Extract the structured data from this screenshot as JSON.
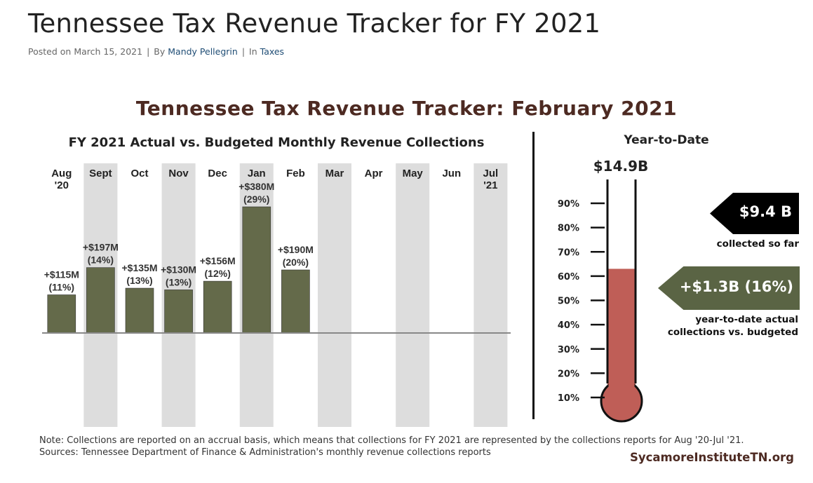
{
  "page": {
    "title": "Tennessee Tax Revenue Tracker for FY 2021",
    "meta": {
      "posted_prefix": "Posted on",
      "date": "March 15, 2021",
      "separator": "|",
      "by_prefix": "By",
      "author": "Mandy Pellegrin",
      "in_prefix": "In",
      "category": "Taxes"
    }
  },
  "infographic": {
    "title": "Tennessee Tax Revenue Tracker: February 2021",
    "left_subtitle": "FY 2021 Actual vs. Budgeted Monthly Revenue Collections",
    "right_subtitle": "Year-to-Date",
    "ytd_total": "$14.9B",
    "collected_callout": "$9.4 B",
    "collected_caption": "collected so far",
    "ytd_diff_callout": "+$1.3B (16%)",
    "ytd_diff_caption_line1": "year-to-date actual",
    "ytd_diff_caption_line2": "collections vs. budgeted",
    "note_line1": "Note: Collections are reported on an accrual basis, which means that collections for FY 2021 are represented by the collections reports for Aug '20-Jul '21.",
    "note_line2": "Sources: Tennessee Department of Finance & Administration's monthly revenue collections reports",
    "brand": "SycamoreInstituteTN.org",
    "colors": {
      "bar": "#646a4a",
      "shade": "#dddddd",
      "thermo_fill": "#bf5e57",
      "title": "#4d2a22",
      "callout_green": "#5a6444"
    }
  },
  "chart_data": [
    {
      "type": "bar",
      "title": "FY 2021 Actual vs. Budgeted Monthly Revenue Collections",
      "categories": [
        "Aug\n'20",
        "Sept",
        "Oct",
        "Nov",
        "Dec",
        "Jan",
        "Feb",
        "Mar",
        "Apr",
        "May",
        "Jun",
        "Jul\n'21"
      ],
      "series": [
        {
          "name": "Actual vs. budgeted ($M)",
          "values": [
            115,
            197,
            135,
            130,
            156,
            380,
            190,
            null,
            null,
            null,
            null,
            null
          ],
          "labels": [
            "+$115M",
            "+$197M",
            "+$135M",
            "+$130M",
            "+$156M",
            "+$380M",
            "+$190M",
            "",
            "",
            "",
            "",
            ""
          ],
          "pct_labels": [
            "(11%)",
            "(14%)",
            "(13%)",
            "(13%)",
            "(12%)",
            "(29%)",
            "(20%)",
            "",
            "",
            "",
            "",
            ""
          ]
        }
      ],
      "ylim": [
        0,
        440
      ],
      "xlabel": "",
      "ylabel": "",
      "shaded_columns": [
        1,
        3,
        5,
        7,
        9,
        11
      ]
    },
    {
      "type": "thermometer",
      "title": "Year-to-Date",
      "ticks": [
        "10%",
        "20%",
        "30%",
        "40%",
        "50%",
        "60%",
        "70%",
        "80%",
        "90%"
      ],
      "tick_values": [
        10,
        20,
        30,
        40,
        50,
        60,
        70,
        80,
        90
      ],
      "fill_percent": 63,
      "ylim": [
        0,
        100
      ]
    }
  ]
}
